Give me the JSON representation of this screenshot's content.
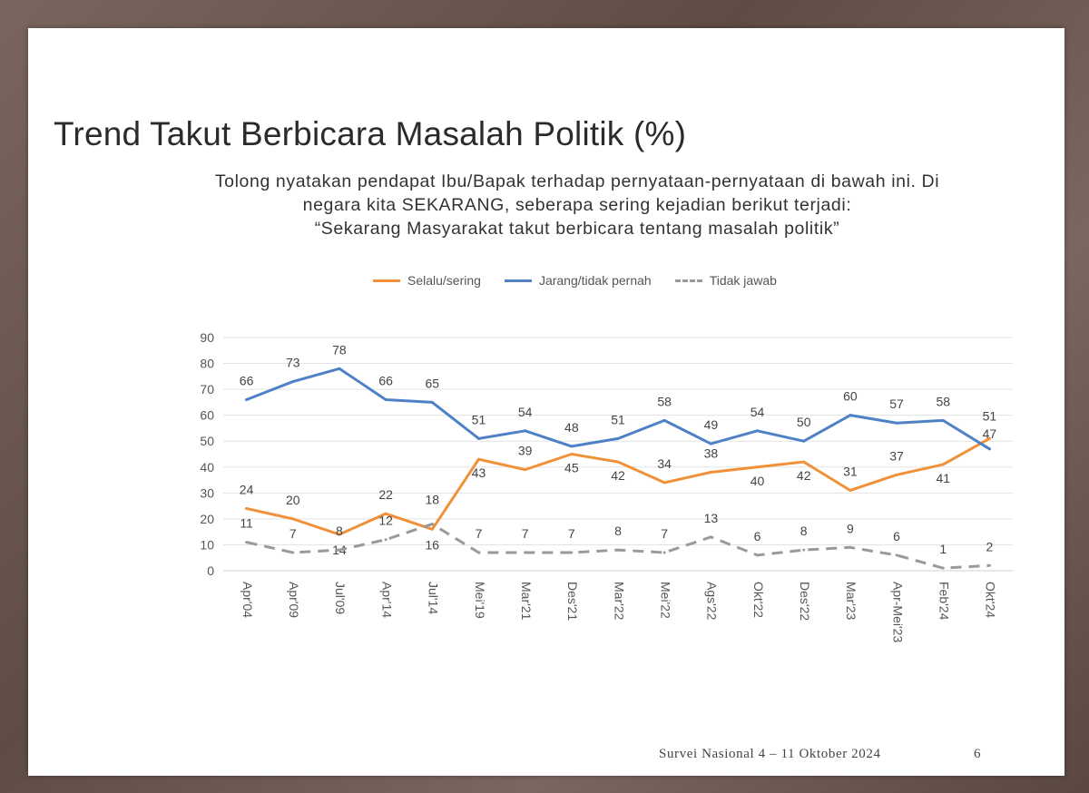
{
  "slide": {
    "title": "Trend Takut Berbicara Masalah Politik (%)",
    "question_lines": [
      "Tolong nyatakan pendapat Ibu/Bapak terhadap pernyataan-pernyataan di bawah ini. Di",
      "negara kita SEKARANG, seberapa sering kejadian berikut terjadi:",
      "“Sekarang Masyarakat takut berbicara tentang masalah politik”"
    ],
    "footer": "Survei Nasional 4 – 11 Oktober 2024",
    "page_number": "6"
  },
  "colors": {
    "frame": "#6e5a52",
    "selalu": "#f0913a",
    "jarang": "#4f81c7",
    "tidak_jawab": "#9a9a9a"
  },
  "chart_data": {
    "type": "line",
    "title": "",
    "xlabel": "",
    "ylabel": "",
    "ylim": [
      0,
      90
    ],
    "yticks": [
      0,
      10,
      20,
      30,
      40,
      50,
      60,
      70,
      80,
      90
    ],
    "grid": true,
    "legend_position": "top",
    "categories": [
      "Apr'04",
      "Apr'09",
      "Jul'09",
      "Apr'14",
      "Jul'14",
      "Mei'19",
      "Mar'21",
      "Des'21",
      "Mar'22",
      "Mei'22",
      "Ags'22",
      "Okt'22",
      "Des'22",
      "Mar'23",
      "Apr-Mei'23",
      "Feb'24",
      "Okt'24"
    ],
    "series": [
      {
        "name": "Selalu/sering",
        "key": "selalu",
        "style": "solid",
        "values": [
          24,
          20,
          14,
          22,
          16,
          43,
          39,
          45,
          42,
          34,
          38,
          40,
          42,
          31,
          37,
          41,
          51
        ]
      },
      {
        "name": "Jarang/tidak pernah",
        "key": "jarang",
        "style": "solid",
        "values": [
          66,
          73,
          78,
          66,
          65,
          51,
          54,
          48,
          51,
          58,
          49,
          54,
          50,
          60,
          57,
          58,
          47
        ]
      },
      {
        "name": "Tidak jawab",
        "key": "tidak_jawab",
        "style": "dashed",
        "values": [
          11,
          7,
          8,
          12,
          18,
          7,
          7,
          7,
          8,
          7,
          13,
          6,
          8,
          9,
          6,
          1,
          2
        ]
      }
    ]
  }
}
